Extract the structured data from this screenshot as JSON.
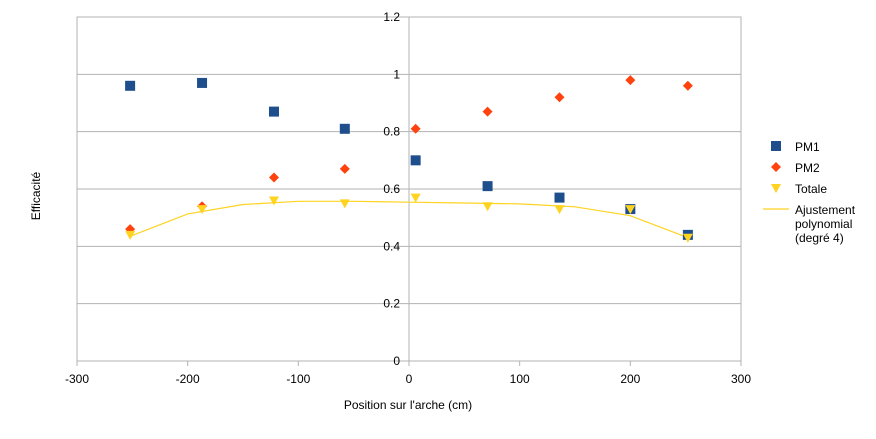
{
  "chart_data": {
    "type": "scatter",
    "title": "",
    "xlabel": "Position sur l'arche (cm)",
    "ylabel": "Efficacité",
    "xlim": [
      -300,
      300
    ],
    "ylim": [
      0,
      1.2
    ],
    "xticks": [
      "-300",
      "-200",
      "-100",
      "0",
      "100",
      "200",
      "300"
    ],
    "yticks": [
      "0",
      "0.2",
      "0.4",
      "0.6",
      "0.8",
      "1",
      "1.2"
    ],
    "grid": "horizontal",
    "legend_position": "right",
    "series": [
      {
        "name": "PM1",
        "marker": "square",
        "color": "#1f4e8c",
        "x": [
          -252,
          -187,
          -122,
          -58,
          6,
          71,
          136,
          200,
          252
        ],
        "y": [
          0.96,
          0.97,
          0.87,
          0.81,
          0.7,
          0.61,
          0.57,
          0.53,
          0.44
        ]
      },
      {
        "name": "PM2",
        "marker": "diamond",
        "color": "#ff420e",
        "x": [
          -252,
          -187,
          -122,
          -58,
          6,
          71,
          136,
          200,
          252
        ],
        "y": [
          0.46,
          0.54,
          0.64,
          0.67,
          0.81,
          0.87,
          0.92,
          0.98,
          0.96
        ]
      },
      {
        "name": "Totale",
        "marker": "triangle-down",
        "color": "#ffd320",
        "x": [
          -252,
          -187,
          -122,
          -58,
          6,
          71,
          136,
          200,
          252
        ],
        "y": [
          0.44,
          0.53,
          0.56,
          0.55,
          0.57,
          0.54,
          0.53,
          0.53,
          0.43
        ]
      }
    ],
    "trendline": {
      "name": "Ajustement polynomial (degré 4)",
      "name_lines": [
        "Ajustement",
        "polynomial",
        "(degré 4)"
      ],
      "color": "#ffd320",
      "curve_x": [
        -252,
        -200,
        -150,
        -100,
        -50,
        0,
        50,
        100,
        150,
        200,
        252
      ],
      "curve_y": [
        0.435,
        0.513,
        0.546,
        0.557,
        0.557,
        0.554,
        0.551,
        0.548,
        0.538,
        0.507,
        0.43
      ]
    }
  }
}
